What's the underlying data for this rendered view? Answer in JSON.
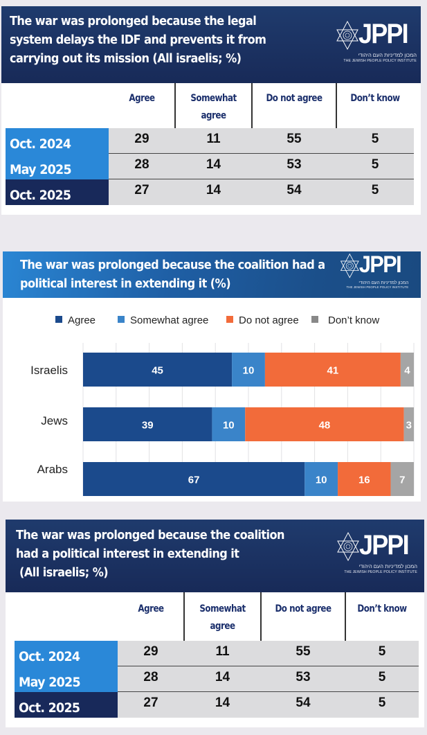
{
  "logo": {
    "name": "JPPI",
    "hebrew": "המכון למדיניות העם היהודי",
    "english": "THE JEWISH PEOPLE POLICY INSTITUTE"
  },
  "table1": {
    "title_lines": [
      "The war was prolonged because the legal",
      "system delays the IDF and prevents it from",
      "carrying out its mission (All israelis; %)"
    ],
    "columns": [
      "Agree",
      "Somewhat\nagree",
      "Do not agree",
      "Don’t know"
    ],
    "column_lines": [
      [
        "Agree"
      ],
      [
        "Somewhat",
        "agree"
      ],
      [
        "Do not agree"
      ],
      [
        "Don’t know"
      ]
    ],
    "rows": [
      {
        "label": "Oct. 2024",
        "values": [
          "29",
          "11",
          "55",
          "5"
        ],
        "color": "#2a88d8"
      },
      {
        "label": "May 2025",
        "values": [
          "28",
          "14",
          "53",
          "5"
        ],
        "color": "#2a88d8"
      },
      {
        "label": "Oct. 2025",
        "values": [
          "27",
          "14",
          "54",
          "5"
        ],
        "color": "#18295a"
      }
    ]
  },
  "chart": {
    "title_lines": [
      "The war was prolonged because the coalition had a",
      "political interest in extending it (%)"
    ]
  },
  "table2": {
    "title_lines": [
      "The war was prolonged because the coalition",
      "had a political interest in extending it",
      " (All israelis; %)"
    ],
    "column_lines": [
      [
        "Agree"
      ],
      [
        "Somewhat",
        "agree"
      ],
      [
        "Do not agree"
      ],
      [
        "Don’t know"
      ]
    ],
    "rows": [
      {
        "label": "Oct. 2024",
        "values": [
          "29",
          "11",
          "55",
          "5"
        ],
        "color": "#2a88d8"
      },
      {
        "label": "May 2025",
        "values": [
          "28",
          "14",
          "53",
          "5"
        ],
        "color": "#2a88d8"
      },
      {
        "label": "Oct. 2025",
        "values": [
          "27",
          "14",
          "54",
          "5"
        ],
        "color": "#18295a"
      }
    ]
  },
  "chart_data": [
    {
      "type": "table",
      "title": "The war was prolonged because the legal system delays the IDF and prevents it from carrying out its mission (All israelis; %)",
      "columns": [
        "Agree",
        "Somewhat agree",
        "Do not agree",
        "Don’t know"
      ],
      "rows": [
        "Oct. 2024",
        "May 2025",
        "Oct. 2025"
      ],
      "values": [
        [
          29,
          11,
          55,
          5
        ],
        [
          28,
          14,
          53,
          5
        ],
        [
          27,
          14,
          54,
          5
        ]
      ]
    },
    {
      "type": "bar",
      "orientation": "horizontal",
      "stacked": true,
      "title": "The war was prolonged because the coalition had a political interest in extending it (%)",
      "categories": [
        "Israelis",
        "Jews",
        "Arabs"
      ],
      "series": [
        {
          "name": "Agree",
          "color": "#1b4a8c",
          "values": [
            45,
            39,
            67
          ]
        },
        {
          "name": "Somewhat agree",
          "color": "#3a84c9",
          "values": [
            10,
            10,
            10
          ]
        },
        {
          "name": "Do not agree",
          "color": "#f26b3a",
          "values": [
            41,
            48,
            16
          ]
        },
        {
          "name": "Don’t know",
          "color": "#a5a5a5",
          "values": [
            4,
            3,
            7
          ]
        }
      ],
      "xlim": [
        0,
        100
      ],
      "grid": true,
      "legend": "top",
      "xlabel": "",
      "ylabel": ""
    },
    {
      "type": "table",
      "title": "The war was prolonged because the coalition had a political interest in extending it (All israelis; %)",
      "columns": [
        "Agree",
        "Somewhat agree",
        "Do not agree",
        "Don’t know"
      ],
      "rows": [
        "Oct. 2024",
        "May 2025",
        "Oct. 2025"
      ],
      "values": [
        [
          29,
          11,
          55,
          5
        ],
        [
          28,
          14,
          53,
          5
        ],
        [
          27,
          14,
          54,
          5
        ]
      ]
    }
  ]
}
